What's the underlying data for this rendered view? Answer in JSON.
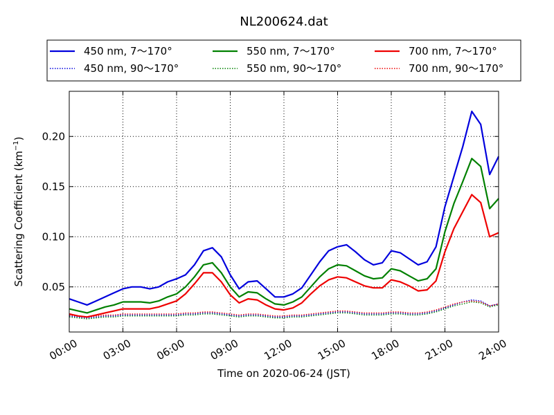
{
  "chart_data": {
    "type": "line",
    "title": "NL200624.dat",
    "xlabel": "Time on 2020-06-24 (JST)",
    "ylabel_main": "Scattering Coefficient (km",
    "ylabel_exp": "−1",
    "ylabel_close": ")",
    "xlim": [
      0,
      24
    ],
    "ylim": [
      0.005,
      0.245
    ],
    "x_ticks": [
      {
        "value": 0,
        "label": "00:00"
      },
      {
        "value": 3,
        "label": "03:00"
      },
      {
        "value": 6,
        "label": "06:00"
      },
      {
        "value": 9,
        "label": "09:00"
      },
      {
        "value": 12,
        "label": "12:00"
      },
      {
        "value": 15,
        "label": "15:00"
      },
      {
        "value": 18,
        "label": "18:00"
      },
      {
        "value": 21,
        "label": "21:00"
      },
      {
        "value": 24,
        "label": "24:00"
      }
    ],
    "y_ticks": [
      {
        "value": 0.05,
        "label": "0.05"
      },
      {
        "value": 0.1,
        "label": "0.10"
      },
      {
        "value": 0.15,
        "label": "0.15"
      },
      {
        "value": 0.2,
        "label": "0.20"
      }
    ],
    "grid": true,
    "legend_position": "top, outside plot, 3 columns",
    "colors": {
      "blue": "#0000dd",
      "green": "#008000",
      "red": "#ee0000"
    },
    "x": [
      0,
      0.5,
      1,
      1.5,
      2,
      2.5,
      3,
      3.5,
      4,
      4.5,
      5,
      5.5,
      6,
      6.5,
      7,
      7.5,
      8,
      8.5,
      9,
      9.5,
      10,
      10.5,
      11,
      11.5,
      12,
      12.5,
      13,
      13.5,
      14,
      14.5,
      15,
      15.5,
      16,
      16.5,
      17,
      17.5,
      18,
      18.5,
      19,
      19.5,
      20,
      20.5,
      21,
      21.5,
      22,
      22.5,
      23,
      23.5,
      24
    ],
    "series": [
      {
        "name": "450 nm, 7～170°",
        "color": "#0000dd",
        "style": "solid",
        "values": [
          0.038,
          0.035,
          0.032,
          0.036,
          0.04,
          0.044,
          0.048,
          0.05,
          0.05,
          0.048,
          0.05,
          0.055,
          0.058,
          0.062,
          0.072,
          0.086,
          0.089,
          0.08,
          0.062,
          0.048,
          0.055,
          0.056,
          0.048,
          0.04,
          0.04,
          0.043,
          0.049,
          0.062,
          0.075,
          0.086,
          0.09,
          0.092,
          0.085,
          0.077,
          0.072,
          0.074,
          0.086,
          0.084,
          0.078,
          0.072,
          0.075,
          0.09,
          0.13,
          0.16,
          0.19,
          0.225,
          0.212,
          0.162,
          0.18
        ]
      },
      {
        "name": "450 nm, 90～170°",
        "color": "#0000dd",
        "style": "dotted",
        "values": [
          0.021,
          0.02,
          0.019,
          0.02,
          0.021,
          0.021,
          0.022,
          0.022,
          0.022,
          0.022,
          0.022,
          0.022,
          0.022,
          0.023,
          0.023,
          0.024,
          0.024,
          0.023,
          0.022,
          0.021,
          0.022,
          0.022,
          0.021,
          0.02,
          0.02,
          0.021,
          0.021,
          0.022,
          0.023,
          0.024,
          0.025,
          0.025,
          0.024,
          0.023,
          0.023,
          0.023,
          0.024,
          0.024,
          0.023,
          0.023,
          0.024,
          0.026,
          0.029,
          0.032,
          0.035,
          0.037,
          0.036,
          0.031,
          0.033
        ]
      },
      {
        "name": "550 nm, 7～170°",
        "color": "#008000",
        "style": "solid",
        "values": [
          0.028,
          0.026,
          0.024,
          0.027,
          0.03,
          0.032,
          0.035,
          0.035,
          0.035,
          0.034,
          0.036,
          0.04,
          0.043,
          0.05,
          0.06,
          0.072,
          0.074,
          0.064,
          0.05,
          0.04,
          0.045,
          0.044,
          0.038,
          0.033,
          0.032,
          0.035,
          0.04,
          0.05,
          0.06,
          0.068,
          0.072,
          0.071,
          0.066,
          0.061,
          0.058,
          0.059,
          0.068,
          0.066,
          0.061,
          0.056,
          0.058,
          0.068,
          0.105,
          0.133,
          0.155,
          0.178,
          0.17,
          0.128,
          0.138
        ]
      },
      {
        "name": "550 nm, 90～170°",
        "color": "#008000",
        "style": "dotted",
        "values": [
          0.02,
          0.019,
          0.018,
          0.019,
          0.02,
          0.02,
          0.021,
          0.021,
          0.021,
          0.021,
          0.021,
          0.021,
          0.021,
          0.022,
          0.022,
          0.023,
          0.023,
          0.022,
          0.021,
          0.02,
          0.021,
          0.021,
          0.02,
          0.019,
          0.019,
          0.02,
          0.02,
          0.021,
          0.022,
          0.023,
          0.024,
          0.024,
          0.023,
          0.022,
          0.022,
          0.022,
          0.023,
          0.023,
          0.022,
          0.022,
          0.023,
          0.025,
          0.028,
          0.031,
          0.033,
          0.035,
          0.034,
          0.03,
          0.032
        ]
      },
      {
        "name": "700 nm, 7～170°",
        "color": "#ee0000",
        "style": "solid",
        "values": [
          0.023,
          0.021,
          0.02,
          0.022,
          0.024,
          0.026,
          0.028,
          0.028,
          0.028,
          0.028,
          0.03,
          0.033,
          0.036,
          0.043,
          0.053,
          0.064,
          0.064,
          0.055,
          0.042,
          0.034,
          0.038,
          0.037,
          0.032,
          0.028,
          0.027,
          0.029,
          0.034,
          0.043,
          0.051,
          0.057,
          0.06,
          0.059,
          0.055,
          0.051,
          0.049,
          0.049,
          0.057,
          0.055,
          0.051,
          0.046,
          0.047,
          0.056,
          0.085,
          0.108,
          0.125,
          0.142,
          0.134,
          0.1,
          0.104
        ]
      },
      {
        "name": "700 nm, 90～170°",
        "color": "#ee0000",
        "style": "dotted",
        "values": [
          0.022,
          0.021,
          0.02,
          0.021,
          0.022,
          0.022,
          0.023,
          0.023,
          0.023,
          0.023,
          0.023,
          0.023,
          0.023,
          0.024,
          0.024,
          0.025,
          0.025,
          0.024,
          0.023,
          0.022,
          0.023,
          0.023,
          0.022,
          0.021,
          0.021,
          0.022,
          0.022,
          0.023,
          0.024,
          0.025,
          0.026,
          0.026,
          0.025,
          0.024,
          0.024,
          0.024,
          0.025,
          0.025,
          0.024,
          0.024,
          0.025,
          0.027,
          0.03,
          0.033,
          0.035,
          0.036,
          0.035,
          0.031,
          0.033
        ]
      }
    ]
  }
}
